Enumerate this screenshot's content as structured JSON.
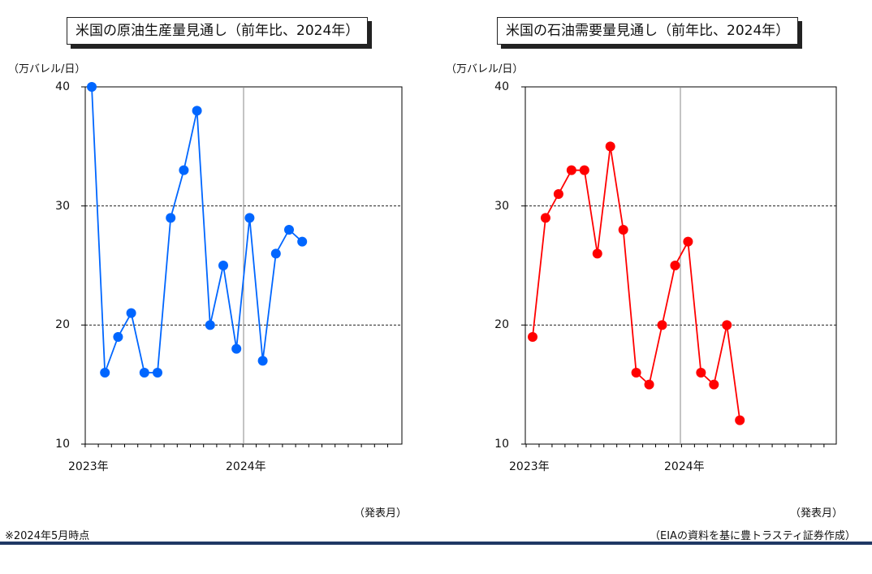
{
  "chart_data": [
    {
      "type": "line",
      "title": "米国の原油生産量見通し（前年比、2024年）",
      "unit_label": "（万バレル/日）",
      "ylim": [
        10,
        40
      ],
      "yticks": [
        "10",
        "20",
        "30",
        "40"
      ],
      "x_tick_labels": [
        "2023年",
        "2024年"
      ],
      "xlabel": "（発表月）",
      "grid": "dashed horizontal at 20 and 30, solid vertical at 2024",
      "series": [
        {
          "name": "",
          "color": "#0066ff",
          "x": [
            "2023-01",
            "2023-02",
            "2023-03",
            "2023-04",
            "2023-05",
            "2023-06",
            "2023-07",
            "2023-08",
            "2023-09",
            "2023-10",
            "2023-11",
            "2023-12",
            "2024-01",
            "2024-02",
            "2024-03",
            "2024-04",
            "2024-05"
          ],
          "values": [
            40,
            16,
            19,
            21,
            16,
            16,
            29,
            33,
            38,
            20,
            25,
            18,
            29,
            17,
            26,
            28,
            27
          ]
        }
      ]
    },
    {
      "type": "line",
      "title": "米国の石油需要量見通し（前年比、2024年）",
      "unit_label": "（万バレル/日）",
      "ylim": [
        10,
        40
      ],
      "yticks": [
        "10",
        "20",
        "30",
        "40"
      ],
      "x_tick_labels": [
        "2023年",
        "2024年"
      ],
      "xlabel": "（発表月）",
      "grid": "dashed horizontal at 20 and 30, solid vertical at 2024",
      "series": [
        {
          "name": "",
          "color": "#ff0000",
          "x": [
            "2023-01",
            "2023-02",
            "2023-03",
            "2023-04",
            "2023-05",
            "2023-06",
            "2023-07",
            "2023-08",
            "2023-09",
            "2023-10",
            "2023-11",
            "2023-12",
            "2024-01",
            "2024-02",
            "2024-03",
            "2024-04",
            "2024-05"
          ],
          "values": [
            19,
            29,
            31,
            33,
            33,
            26,
            35,
            28,
            16,
            15,
            20,
            25,
            27,
            16,
            15,
            20,
            12
          ]
        }
      ]
    }
  ],
  "footer": {
    "note": "※2024年5月時点",
    "source": "（EIAの資料を基に豊トラスティ証券作成）"
  },
  "colors": {
    "accent_bar": "#1f3864"
  }
}
